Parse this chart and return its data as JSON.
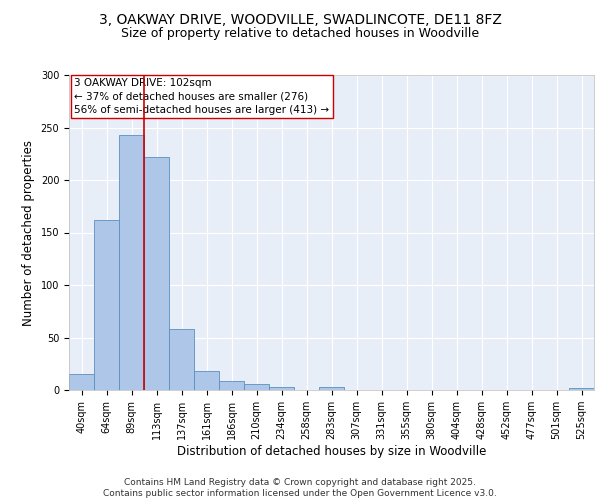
{
  "title_line1": "3, OAKWAY DRIVE, WOODVILLE, SWADLINCOTE, DE11 8FZ",
  "title_line2": "Size of property relative to detached houses in Woodville",
  "xlabel": "Distribution of detached houses by size in Woodville",
  "ylabel": "Number of detached properties",
  "categories": [
    "40sqm",
    "64sqm",
    "89sqm",
    "113sqm",
    "137sqm",
    "161sqm",
    "186sqm",
    "210sqm",
    "234sqm",
    "258sqm",
    "283sqm",
    "307sqm",
    "331sqm",
    "355sqm",
    "380sqm",
    "404sqm",
    "428sqm",
    "452sqm",
    "477sqm",
    "501sqm",
    "525sqm"
  ],
  "values": [
    15,
    162,
    243,
    222,
    58,
    18,
    9,
    6,
    3,
    0,
    3,
    0,
    0,
    0,
    0,
    0,
    0,
    0,
    0,
    0,
    2
  ],
  "bar_color": "#aec6e8",
  "bar_edge_color": "#5a8fc0",
  "vline_x": 2.5,
  "vline_color": "#cc0000",
  "annotation_text": "3 OAKWAY DRIVE: 102sqm\n← 37% of detached houses are smaller (276)\n56% of semi-detached houses are larger (413) →",
  "annotation_box_color": "#ffffff",
  "annotation_box_edge_color": "#cc0000",
  "footer_text": "Contains HM Land Registry data © Crown copyright and database right 2025.\nContains public sector information licensed under the Open Government Licence v3.0.",
  "ylim": [
    0,
    300
  ],
  "background_color": "#e8eef8",
  "grid_color": "#ffffff",
  "title_fontsize": 10,
  "subtitle_fontsize": 9,
  "axis_label_fontsize": 8.5,
  "tick_fontsize": 7,
  "annotation_fontsize": 7.5,
  "footer_fontsize": 6.5
}
